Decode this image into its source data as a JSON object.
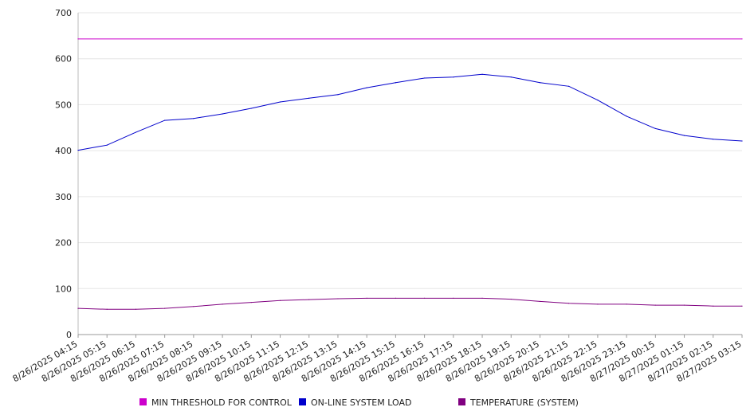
{
  "chart_data": {
    "type": "line",
    "title": "",
    "xlabel": "",
    "ylabel": "",
    "ylim": [
      0,
      700
    ],
    "yticks": [
      0,
      100,
      200,
      300,
      400,
      500,
      600,
      700
    ],
    "x_tick_labels": [
      "8/26/2025 04:15",
      "8/26/2025 05:15",
      "8/26/2025 06:15",
      "8/26/2025 07:15",
      "8/26/2025 08:15",
      "8/26/2025 09:15",
      "8/26/2025 10:15",
      "8/26/2025 11:15",
      "8/26/2025 12:15",
      "8/26/2025 13:15",
      "8/26/2025 14:15",
      "8/26/2025 15:15",
      "8/26/2025 16:15",
      "8/26/2025 17:15",
      "8/26/2025 18:15",
      "8/26/2025 19:15",
      "8/26/2025 20:15",
      "8/26/2025 21:15",
      "8/26/2025 22:15",
      "8/26/2025 23:15",
      "8/27/2025 00:15",
      "8/27/2025 01:15",
      "8/27/2025 02:15",
      "8/27/2025 03:15"
    ],
    "grid": true,
    "legend_position": "bottom",
    "series": [
      {
        "name": "MIN THRESHOLD FOR CONTROL",
        "color": "#cc00cc",
        "x": [
          "8/26/2025 04:15",
          "8/27/2025 03:15"
        ],
        "values": [
          643,
          643
        ]
      },
      {
        "name": "ON-LINE SYSTEM LOAD",
        "color": "#0000cc",
        "x": [
          "8/26/2025 04:15",
          "8/26/2025 05:15",
          "8/26/2025 06:15",
          "8/26/2025 07:15",
          "8/26/2025 08:15",
          "8/26/2025 09:15",
          "8/26/2025 10:15",
          "8/26/2025 11:15",
          "8/26/2025 12:15",
          "8/26/2025 13:15",
          "8/26/2025 14:15",
          "8/26/2025 15:15",
          "8/26/2025 16:15",
          "8/26/2025 17:15",
          "8/26/2025 18:15",
          "8/26/2025 19:15",
          "8/26/2025 20:15",
          "8/26/2025 21:15",
          "8/26/2025 22:15",
          "8/26/2025 23:15",
          "8/27/2025 00:15",
          "8/27/2025 01:15",
          "8/27/2025 02:15",
          "8/27/2025 03:15"
        ],
        "values": [
          401,
          412,
          440,
          466,
          470,
          480,
          492,
          506,
          514,
          522,
          537,
          548,
          558,
          560,
          566,
          560,
          548,
          540,
          510,
          475,
          448,
          433,
          425,
          421
        ]
      },
      {
        "name": "TEMPERATURE (SYSTEM)",
        "color": "#800080",
        "x": [
          "8/26/2025 04:15",
          "8/26/2025 05:15",
          "8/26/2025 06:15",
          "8/26/2025 07:15",
          "8/26/2025 08:15",
          "8/26/2025 09:15",
          "8/26/2025 10:15",
          "8/26/2025 11:15",
          "8/26/2025 12:15",
          "8/26/2025 13:15",
          "8/26/2025 14:15",
          "8/26/2025 15:15",
          "8/26/2025 16:15",
          "8/26/2025 17:15",
          "8/26/2025 18:15",
          "8/26/2025 19:15",
          "8/26/2025 20:15",
          "8/26/2025 21:15",
          "8/26/2025 22:15",
          "8/26/2025 23:15",
          "8/27/2025 00:15",
          "8/27/2025 01:15",
          "8/27/2025 02:15",
          "8/27/2025 03:15"
        ],
        "values": [
          57,
          55,
          55,
          57,
          61,
          66,
          70,
          74,
          76,
          78,
          79,
          79,
          79,
          79,
          79,
          77,
          72,
          68,
          66,
          66,
          64,
          64,
          62,
          62
        ]
      }
    ]
  }
}
